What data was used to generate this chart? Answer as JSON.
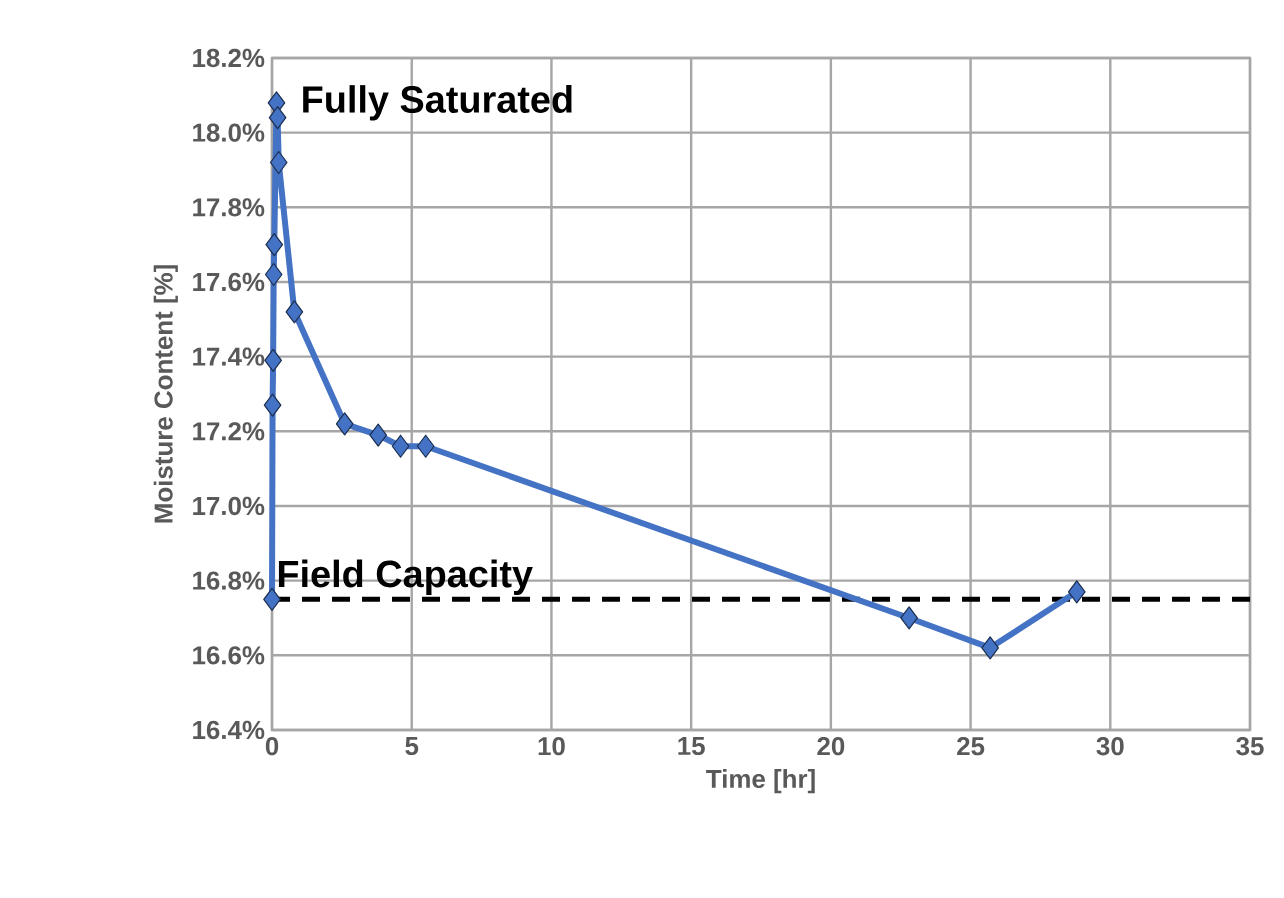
{
  "chart_data": {
    "type": "line",
    "xlabel": "Time [hr]",
    "ylabel": "Moisture Content [%]",
    "x": [
      0,
      0.02,
      0.04,
      0.06,
      0.08,
      0.16,
      0.2,
      0.24,
      0.8,
      2.6,
      3.8,
      4.6,
      5.5,
      22.8,
      25.7,
      28.8
    ],
    "series": [
      {
        "color": "#4472c4",
        "values": [
          16.75,
          17.27,
          17.39,
          17.62,
          17.7,
          18.08,
          18.04,
          17.92,
          17.52,
          17.22,
          17.19,
          17.16,
          17.16,
          16.7,
          16.62,
          16.77
        ]
      }
    ],
    "xlim": [
      0,
      35
    ],
    "xticks": [
      0,
      5,
      10,
      15,
      20,
      25,
      30,
      35
    ],
    "ylim": [
      16.4,
      18.2
    ],
    "yticks": [
      {
        "value": 16.4,
        "label": "16.4%"
      },
      {
        "value": 16.6,
        "label": "16.6%"
      },
      {
        "value": 16.8,
        "label": "16.8%"
      },
      {
        "value": 17.0,
        "label": "17.0%"
      },
      {
        "value": 17.2,
        "label": "17.2%"
      },
      {
        "value": 17.4,
        "label": "17.4%"
      },
      {
        "value": 17.6,
        "label": "17.6%"
      },
      {
        "value": 17.8,
        "label": "17.8%"
      },
      {
        "value": 18.0,
        "label": "18.0%"
      },
      {
        "value": 18.2,
        "label": "18.2%"
      }
    ],
    "ref_lines": [
      {
        "axis": "y",
        "value": 16.75,
        "label": "Field Capacity",
        "color": "#000000",
        "line_style": "dashed"
      }
    ],
    "annotations": [
      {
        "text": "Fully Saturated",
        "x": 0.2,
        "y": 18.08
      }
    ],
    "grid": true,
    "marker": "diamond",
    "line_style": "solid"
  }
}
